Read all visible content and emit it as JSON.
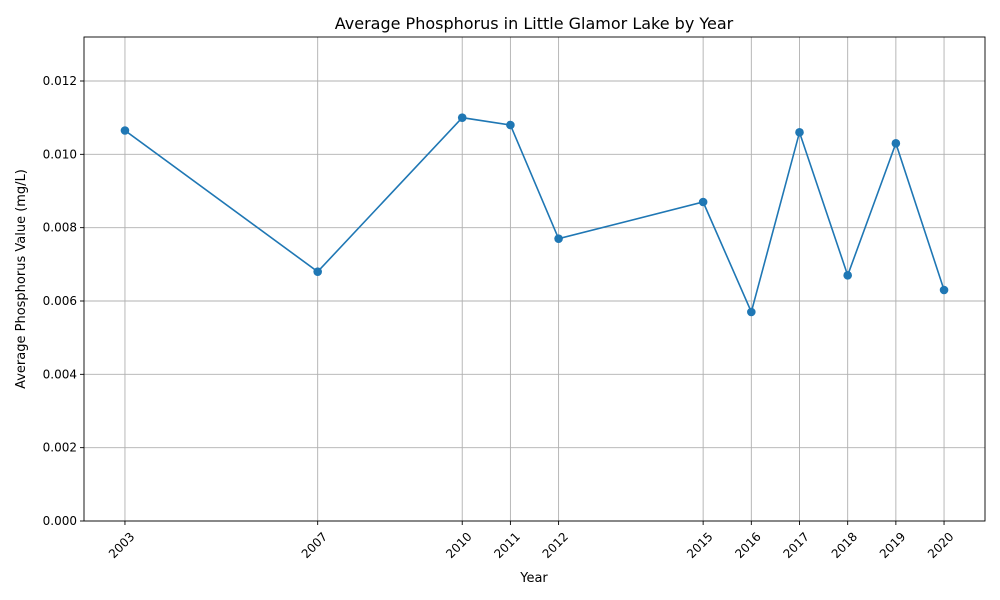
{
  "chart_data": {
    "type": "line",
    "title": "Average Phosphorus in Little Glamor Lake by Year",
    "xlabel": "Year",
    "ylabel": "Average Phosphorus Value (mg/L)",
    "x": [
      2003,
      2007,
      2010,
      2011,
      2012,
      2015,
      2016,
      2017,
      2018,
      2019,
      2020
    ],
    "x_tick_labels": [
      "2003",
      "2007",
      "2010",
      "2011",
      "2012",
      "2015",
      "2016",
      "2017",
      "2018",
      "2019",
      "2020"
    ],
    "series": [
      {
        "values": [
          0.01065,
          0.0068,
          0.011,
          0.0108,
          0.0077,
          0.0087,
          0.0057,
          0.0106,
          0.0067,
          0.0103,
          0.0063
        ],
        "color": "#1f77b4",
        "marker": "circle"
      }
    ],
    "xlim": [
      2002.15,
      2020.85
    ],
    "ylim": [
      0,
      0.0132
    ],
    "y_ticks": [
      0,
      0.002,
      0.004,
      0.006,
      0.008,
      0.01,
      0.012
    ],
    "y_tick_labels": [
      "0.000",
      "0.002",
      "0.004",
      "0.006",
      "0.008",
      "0.010",
      "0.012"
    ],
    "x_tick_rotation": 45,
    "grid": true,
    "legend": "none"
  }
}
